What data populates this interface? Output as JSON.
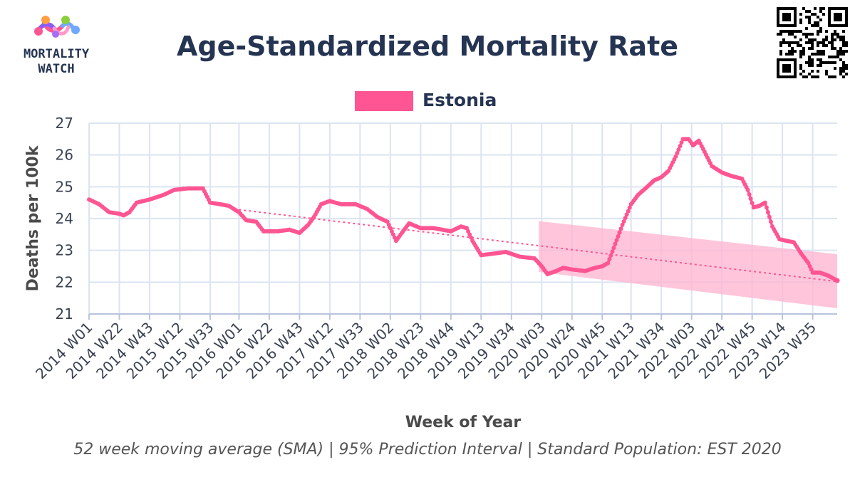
{
  "logo": {
    "line1": "MORTALITY",
    "line2": "WATCH"
  },
  "qr": {
    "icon": "qr-code-icon"
  },
  "colors": {
    "series": "#ff5592",
    "band": "#ffb3cf",
    "title": "#253452"
  },
  "chart_data": {
    "type": "line",
    "title": "Age-Standardized Mortality Rate",
    "xlabel": "Week of Year",
    "ylabel": "Deaths per 100k",
    "footnote": "52 week moving average (SMA) | 95% Prediction Interval | Standard Population: EST 2020",
    "ylim": [
      21,
      27
    ],
    "yticks": [
      21,
      22,
      23,
      24,
      25,
      26,
      27
    ],
    "xticks": [
      "2014 W01",
      "2014 W22",
      "2014 W43",
      "2015 W12",
      "2015 W33",
      "2016 W01",
      "2016 W22",
      "2016 W43",
      "2017 W12",
      "2017 W33",
      "2018 W02",
      "2018 W23",
      "2018 W44",
      "2019 W13",
      "2019 W34",
      "2020 W03",
      "2020 W24",
      "2020 W45",
      "2021 W13",
      "2021 W34",
      "2022 W03",
      "2022 W24",
      "2022 W45",
      "2023 W14",
      "2023 W35"
    ],
    "grid": true,
    "legend": "top-center",
    "series": [
      {
        "name": "Estonia",
        "points": [
          [
            "2014 W01",
            24.6
          ],
          [
            "2014 W08",
            24.45
          ],
          [
            "2014 W15",
            24.2
          ],
          [
            "2014 W22",
            24.15
          ],
          [
            "2014 W25",
            24.1
          ],
          [
            "2014 W29",
            24.2
          ],
          [
            "2014 W34",
            24.5
          ],
          [
            "2014 W43",
            24.6
          ],
          [
            "2015 W01",
            24.75
          ],
          [
            "2015 W08",
            24.9
          ],
          [
            "2015 W18",
            24.95
          ],
          [
            "2015 W28",
            24.95
          ],
          [
            "2015 W33",
            24.5
          ],
          [
            "2015 W40",
            24.45
          ],
          [
            "2015 W46",
            24.4
          ],
          [
            "2016 W01",
            24.2
          ],
          [
            "2016 W06",
            23.95
          ],
          [
            "2016 W13",
            23.9
          ],
          [
            "2016 W18",
            23.6
          ],
          [
            "2016 W28",
            23.6
          ],
          [
            "2016 W36",
            23.65
          ],
          [
            "2016 W43",
            23.55
          ],
          [
            "2016 W49",
            23.8
          ],
          [
            "2017 W01",
            24.05
          ],
          [
            "2017 W06",
            24.45
          ],
          [
            "2017 W12",
            24.55
          ],
          [
            "2017 W20",
            24.45
          ],
          [
            "2017 W30",
            24.45
          ],
          [
            "2017 W38",
            24.3
          ],
          [
            "2017 W45",
            24.05
          ],
          [
            "2017 W52",
            23.9
          ],
          [
            "2018 W06",
            23.3
          ],
          [
            "2018 W10",
            23.55
          ],
          [
            "2018 W15",
            23.85
          ],
          [
            "2018 W23",
            23.7
          ],
          [
            "2018 W32",
            23.7
          ],
          [
            "2018 W44",
            23.6
          ],
          [
            "2018 W51",
            23.75
          ],
          [
            "2019 W03",
            23.7
          ],
          [
            "2019 W07",
            23.3
          ],
          [
            "2019 W13",
            22.85
          ],
          [
            "2019 W22",
            22.9
          ],
          [
            "2019 W30",
            22.95
          ],
          [
            "2019 W40",
            22.8
          ],
          [
            "2019 W50",
            22.75
          ],
          [
            "2020 W03",
            22.5
          ],
          [
            "2020 W07",
            22.25
          ],
          [
            "2020 W13",
            22.35
          ],
          [
            "2020 W18",
            22.45
          ],
          [
            "2020 W24",
            22.4
          ],
          [
            "2020 W33",
            22.35
          ],
          [
            "2020 W40",
            22.45
          ],
          [
            "2020 W45",
            22.5
          ],
          [
            "2020 W49",
            22.6
          ],
          [
            "2021 W02",
            23.2
          ],
          [
            "2021 W07",
            23.8
          ],
          [
            "2021 W13",
            24.45
          ],
          [
            "2021 W18",
            24.75
          ],
          [
            "2021 W23",
            24.95
          ],
          [
            "2021 W29",
            25.2
          ],
          [
            "2021 W34",
            25.3
          ],
          [
            "2021 W39",
            25.5
          ],
          [
            "2021 W44",
            25.95
          ],
          [
            "2021 W49",
            26.5
          ],
          [
            "2022 W01",
            26.5
          ],
          [
            "2022 W04",
            26.3
          ],
          [
            "2022 W08",
            26.45
          ],
          [
            "2022 W12",
            26.1
          ],
          [
            "2022 W17",
            25.65
          ],
          [
            "2022 W24",
            25.45
          ],
          [
            "2022 W30",
            25.35
          ],
          [
            "2022 W38",
            25.25
          ],
          [
            "2022 W42",
            24.9
          ],
          [
            "2022 W46",
            24.35
          ],
          [
            "2022 W50",
            24.4
          ],
          [
            "2023 W02",
            24.5
          ],
          [
            "2023 W07",
            23.75
          ],
          [
            "2023 W12",
            23.35
          ],
          [
            "2023 W17",
            23.3
          ],
          [
            "2023 W22",
            23.25
          ],
          [
            "2023 W27",
            22.9
          ],
          [
            "2023 W32",
            22.6
          ],
          [
            "2023 W35",
            22.3
          ],
          [
            "2023 W40",
            22.3
          ],
          [
            "2023 W46",
            22.2
          ],
          [
            "2023 W52",
            22.05
          ]
        ]
      }
    ],
    "trend": [
      [
        "2016 W01",
        24.28
      ],
      [
        "2023 W52",
        22.02
      ]
    ],
    "prediction_interval": {
      "x": [
        "2020 W01",
        "2023 W52"
      ],
      "upper": [
        23.92,
        22.88
      ],
      "lower": [
        22.32,
        21.18
      ]
    }
  }
}
